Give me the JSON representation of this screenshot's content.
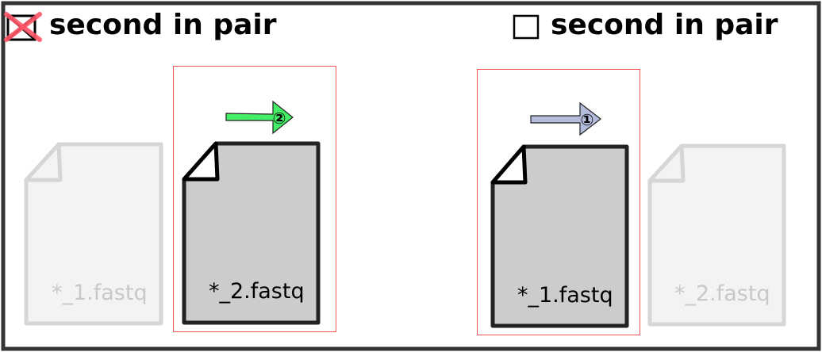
{
  "panels": [
    {
      "heading": "second in pair",
      "checked": true,
      "arrow_number": "②",
      "arrow_color": "#44ee66",
      "files": [
        {
          "name": "*_1.fastq",
          "state": "dimmed"
        },
        {
          "name": "*_2.fastq",
          "state": "selected"
        }
      ]
    },
    {
      "heading": "second in pair",
      "checked": false,
      "arrow_number": "①",
      "arrow_color": "#b4bcdc",
      "files": [
        {
          "name": "*_1.fastq",
          "state": "selected"
        },
        {
          "name": "*_2.fastq",
          "state": "dimmed"
        }
      ]
    }
  ],
  "colors": {
    "frame": "#333333",
    "highlight_box": "#ee5555",
    "cross_mark": "#ff5566",
    "file_selected_fill": "#cccccc",
    "file_selected_stroke": "#222222",
    "file_dimmed_fill": "#f3f3f3",
    "file_dimmed_stroke": "#d6d6d6"
  }
}
